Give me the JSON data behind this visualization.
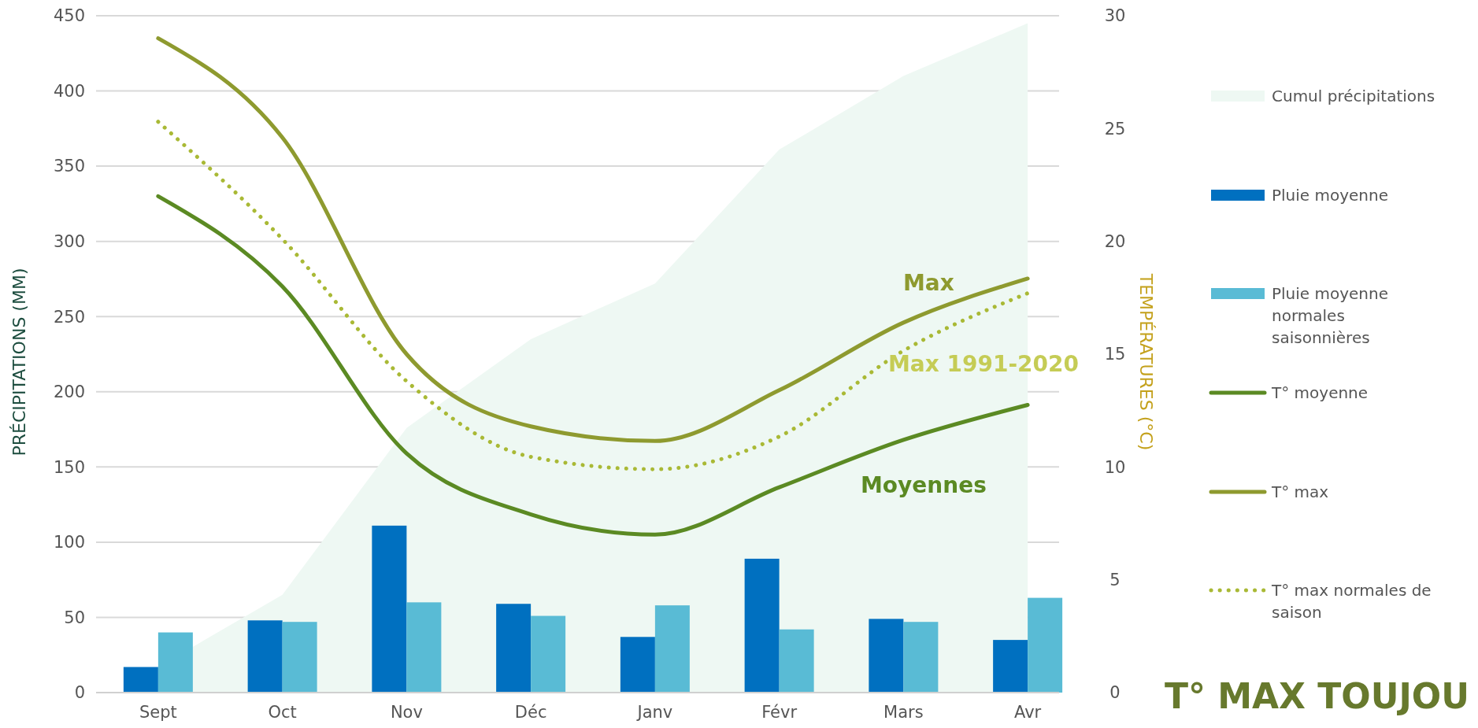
{
  "chart_data": {
    "type": "bar",
    "categories": [
      "Sept",
      "Oct",
      "Nov",
      "Déc",
      "Janv",
      "Févr",
      "Mars",
      "Avr"
    ],
    "series": [
      {
        "name": "Cumul précipitations",
        "type": "area",
        "color": "#eef8f3",
        "values": [
          17,
          65,
          176,
          235,
          272,
          361,
          410,
          445
        ]
      },
      {
        "name": "Pluie moyenne",
        "color": "#0070c0",
        "values": [
          17,
          48,
          111,
          59,
          37,
          89,
          49,
          35
        ]
      },
      {
        "name": "Pluie moyenne normales saisonnières",
        "color": "#59bbd5",
        "values": [
          40,
          47,
          60,
          51,
          58,
          42,
          47,
          63
        ]
      },
      {
        "name": "T° moyenne",
        "type": "line",
        "axis": "y2",
        "color": "#5b8a23",
        "line_style": "solid",
        "values": [
          22.0,
          18.0,
          10.6,
          7.9,
          7.0,
          9.1,
          11.2,
          12.75
        ]
      },
      {
        "name": "T° max",
        "type": "line",
        "axis": "y2",
        "color": "#8e9a2f",
        "line_style": "solid",
        "values": [
          29.0,
          24.6,
          15.0,
          11.8,
          11.15,
          13.4,
          16.4,
          18.35
        ]
      },
      {
        "name": "T° max normales de saison",
        "type": "line",
        "axis": "y2",
        "color": "#a9b935",
        "line_style": "dotted",
        "values": [
          25.3,
          20.1,
          13.8,
          10.45,
          9.9,
          11.35,
          15.15,
          17.7
        ]
      }
    ],
    "ylabel": "PRÉCIPITATIONS (MM)",
    "y2label": "TEMPÉRATURES (°C)",
    "ylim": [
      0,
      450
    ],
    "yticks": [
      0,
      50,
      100,
      150,
      200,
      250,
      300,
      350,
      400,
      450
    ],
    "y2lim": [
      0,
      30
    ],
    "y2ticks": [
      0,
      5,
      10,
      15,
      20,
      25,
      30
    ],
    "grid": "y",
    "legend": "right",
    "marker": "none",
    "annotations": [
      "Max",
      "Max 1991-2020",
      "Moyennes",
      "T° MAX TOUJOU"
    ]
  }
}
